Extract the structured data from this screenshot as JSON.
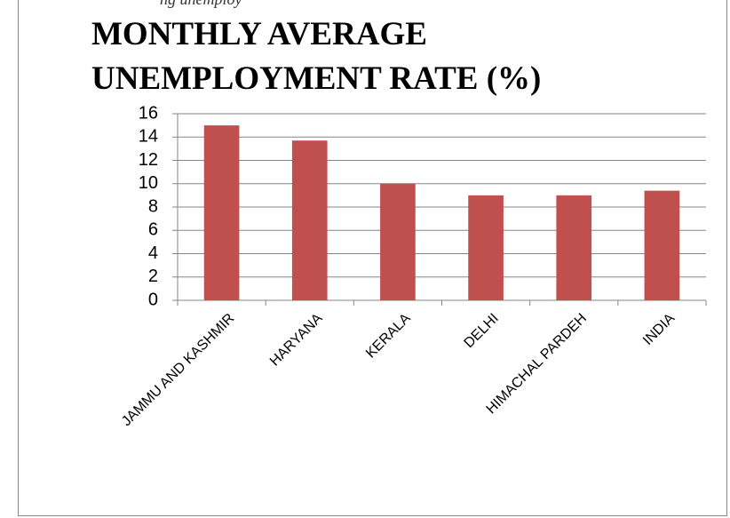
{
  "caption": "ng unemploy",
  "chart_data": {
    "type": "bar",
    "title": "MONTHLY AVERAGE UNEMPLOYMENT RATE (%)",
    "categories": [
      "JAMMU AND KASHMIR",
      "HARYANA",
      "KERALA",
      "DELHI",
      "HIMACHAL PARDEH",
      "INDIA"
    ],
    "values": [
      15,
      13.7,
      10,
      9,
      9,
      9.4
    ],
    "color": "#c0504d",
    "ylim": [
      0,
      16
    ],
    "yticks": [
      0,
      2,
      4,
      6,
      8,
      10,
      12,
      14,
      16
    ],
    "grid": true
  }
}
